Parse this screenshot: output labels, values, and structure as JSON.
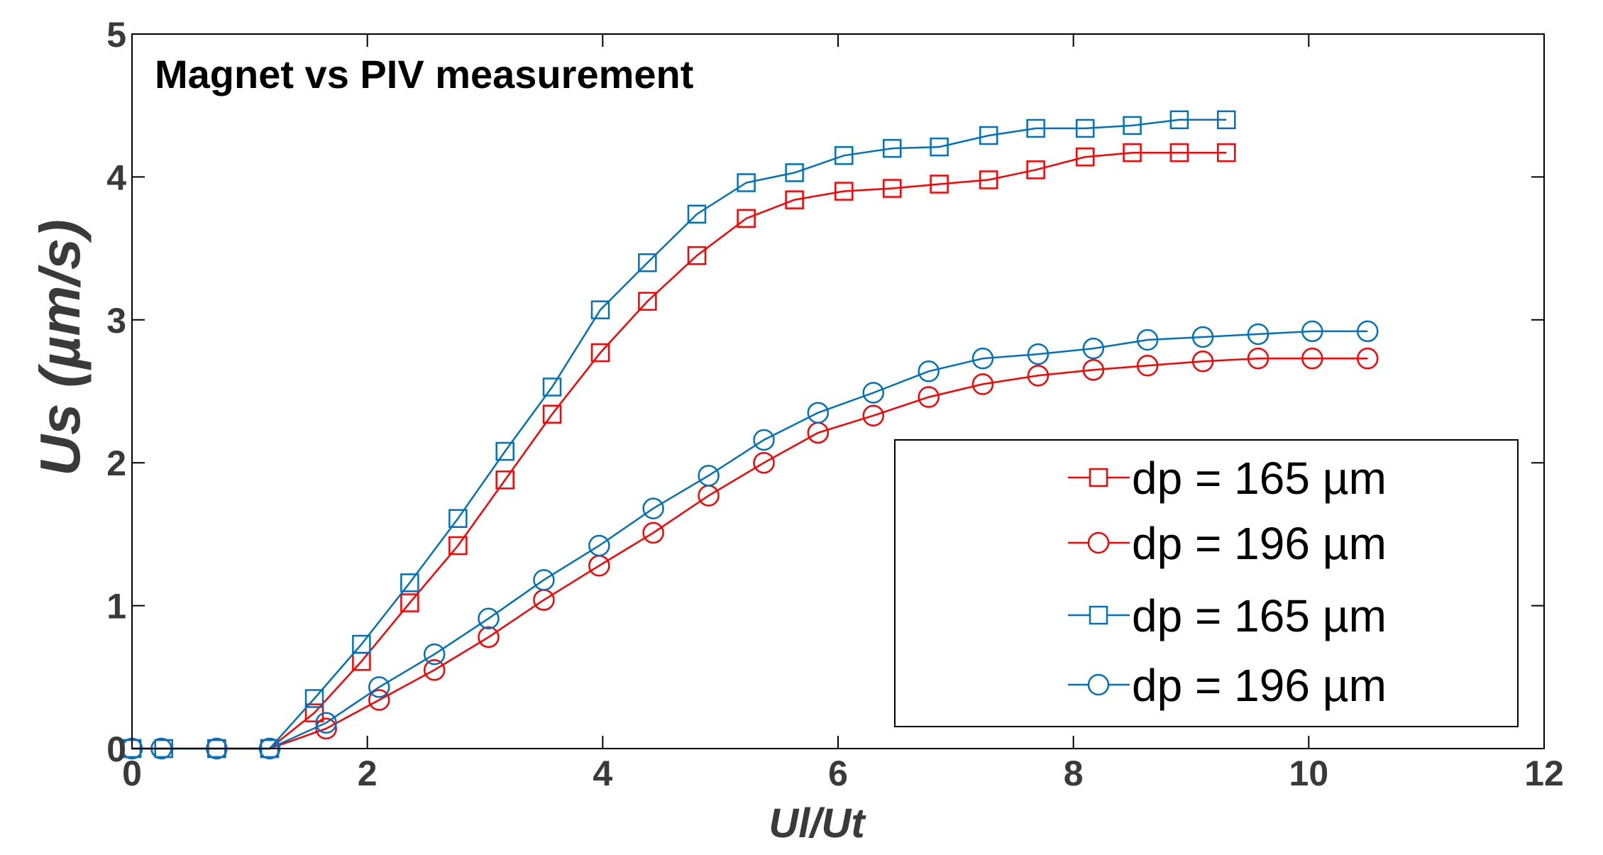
{
  "chart_data": {
    "type": "line",
    "title": "Magnet vs PIV measurement",
    "xlabel": "Ul/Ut",
    "ylabel": "Us (µm/s)",
    "xlim": [
      0,
      12
    ],
    "ylim": [
      0,
      5
    ],
    "xticks": [
      "0",
      "2",
      "4",
      "6",
      "8",
      "10",
      "12"
    ],
    "yticks": [
      "0",
      "1",
      "2",
      "3",
      "4",
      "5"
    ],
    "legend_position": "bottom-right",
    "series": [
      {
        "name": "dp = 165 µm",
        "color": "#ff0000",
        "marker": "square",
        "x": [
          0,
          0.27,
          0.72,
          1.17,
          1.55,
          1.95,
          2.36,
          2.77,
          3.17,
          3.57,
          3.98,
          4.38,
          4.8,
          5.22,
          5.63,
          6.05,
          6.46,
          6.86,
          7.28,
          7.68,
          8.1,
          8.5,
          8.9,
          9.3
        ],
        "y": [
          0,
          0,
          0,
          0,
          0.25,
          0.61,
          1.02,
          1.42,
          1.88,
          2.34,
          2.77,
          3.13,
          3.45,
          3.71,
          3.84,
          3.9,
          3.92,
          3.95,
          3.98,
          4.05,
          4.14,
          4.17,
          4.17,
          4.17
        ]
      },
      {
        "name": "dp = 196 µm",
        "color": "#ff0000",
        "marker": "circle",
        "x": [
          0,
          0.25,
          0.72,
          1.17,
          1.65,
          2.1,
          2.57,
          3.03,
          3.5,
          3.97,
          4.43,
          4.9,
          5.37,
          5.83,
          6.3,
          6.77,
          7.23,
          7.7,
          8.17,
          8.63,
          9.1,
          9.57,
          10.03,
          10.5
        ],
        "y": [
          0,
          0,
          0,
          0,
          0.14,
          0.34,
          0.55,
          0.78,
          1.04,
          1.28,
          1.51,
          1.77,
          2.0,
          2.21,
          2.33,
          2.46,
          2.55,
          2.61,
          2.65,
          2.68,
          2.71,
          2.73,
          2.73,
          2.73
        ]
      },
      {
        "name": "dp = 165 µm",
        "color": "#0072bd",
        "marker": "square",
        "x": [
          0,
          0.27,
          0.72,
          1.17,
          1.55,
          1.95,
          2.36,
          2.77,
          3.17,
          3.57,
          3.98,
          4.38,
          4.8,
          5.22,
          5.63,
          6.05,
          6.46,
          6.86,
          7.28,
          7.68,
          8.1,
          8.5,
          8.9,
          9.3
        ],
        "y": [
          0,
          0,
          0,
          0,
          0.35,
          0.73,
          1.16,
          1.61,
          2.08,
          2.53,
          3.07,
          3.4,
          3.74,
          3.96,
          4.03,
          4.15,
          4.2,
          4.21,
          4.29,
          4.34,
          4.34,
          4.36,
          4.4,
          4.4
        ]
      },
      {
        "name": "dp = 196 µm",
        "color": "#0072bd",
        "marker": "circle",
        "x": [
          0,
          0.25,
          0.72,
          1.17,
          1.65,
          2.1,
          2.57,
          3.03,
          3.5,
          3.97,
          4.43,
          4.9,
          5.37,
          5.83,
          6.3,
          6.77,
          7.23,
          7.7,
          8.17,
          8.63,
          9.1,
          9.57,
          10.03,
          10.5
        ],
        "y": [
          0,
          0,
          0,
          0,
          0.18,
          0.43,
          0.66,
          0.91,
          1.18,
          1.42,
          1.68,
          1.91,
          2.16,
          2.35,
          2.49,
          2.64,
          2.73,
          2.76,
          2.8,
          2.86,
          2.88,
          2.9,
          2.92,
          2.92
        ]
      }
    ]
  }
}
